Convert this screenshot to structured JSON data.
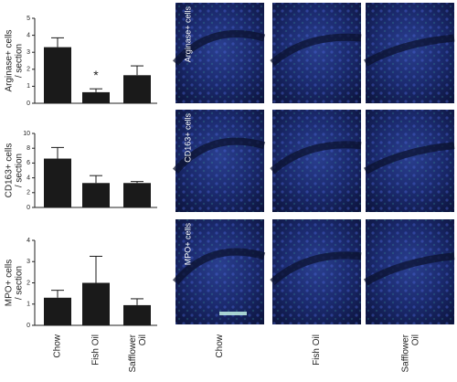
{
  "chart_data": [
    {
      "type": "bar",
      "ylabel": [
        "Arginase+ cells",
        "/ section"
      ],
      "categories": [
        null,
        null,
        null
      ],
      "values": [
        3.3,
        0.65,
        1.65
      ],
      "errors": [
        0.55,
        0.2,
        0.55
      ],
      "annotation_labels": [
        null,
        "*",
        null
      ],
      "color": "#1a1a1a",
      "ylim": [
        0,
        5
      ],
      "yticks": [
        0,
        1,
        2,
        3,
        4,
        5
      ]
    },
    {
      "type": "bar",
      "ylabel": [
        "CD163+ cells",
        "/ section"
      ],
      "categories": [
        null,
        null,
        null
      ],
      "values": [
        6.6,
        3.3,
        3.3
      ],
      "errors": [
        1.5,
        1.0,
        0.2
      ],
      "annotation_labels": [
        null,
        null,
        null
      ],
      "color": "#1a1a1a",
      "ylim": [
        0,
        10
      ],
      "yticks": [
        0,
        2,
        4,
        6,
        8,
        10
      ]
    },
    {
      "type": "bar",
      "ylabel": [
        "MPO+ cells",
        "/ section"
      ],
      "categories": [
        "Chow",
        "Fish Oil",
        "Safflower Oil"
      ],
      "values": [
        1.3,
        2.0,
        0.95
      ],
      "errors": [
        0.35,
        1.25,
        0.3
      ],
      "annotation_labels": [
        null,
        null,
        null
      ],
      "color": "#1a1a1a",
      "ylim": [
        0,
        4
      ],
      "yticks": [
        0,
        1,
        2,
        3,
        4
      ]
    }
  ],
  "image_grid": {
    "row_labels": [
      "Arginase+ cells",
      "CD163+ cells",
      "MPO+ cells"
    ],
    "column_labels": [
      "Chow",
      "Fish Oil",
      "Safflower Oil"
    ]
  }
}
